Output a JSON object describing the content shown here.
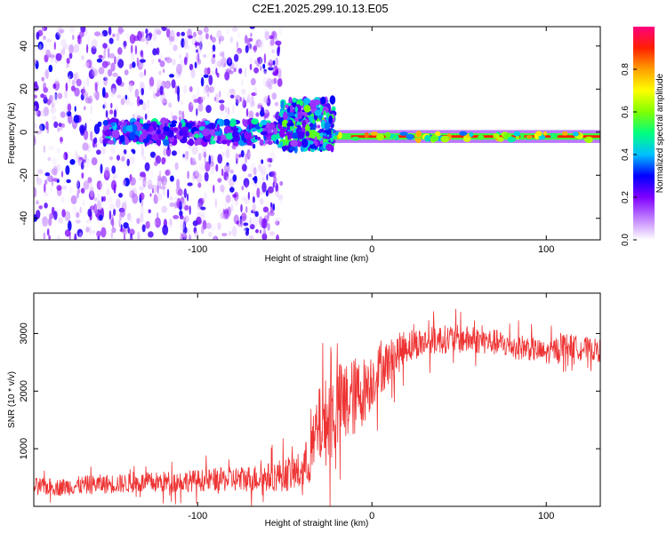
{
  "title": "C2E1.2025.299.10.13.E05",
  "chart_data": [
    {
      "type": "heatmap",
      "xlabel": "Height of straight line (km)",
      "ylabel": "Frequency (Hz)",
      "xlim": [
        -194,
        131
      ],
      "ylim": [
        -50,
        49
      ],
      "xticks": [
        -100,
        0,
        100
      ],
      "xtick_labels": [
        "-100",
        "0",
        "100"
      ],
      "yticks": [
        -40,
        -20,
        0,
        20,
        40
      ],
      "ytick_labels": [
        "-40",
        "-20",
        "0",
        "20",
        "40"
      ],
      "colorbar": {
        "label": "Normalized spectral amplitude",
        "range": [
          0.0,
          1.0
        ],
        "ticks": [
          0.0,
          0.2,
          0.4,
          0.6,
          0.8
        ],
        "tick_labels": [
          "0.0",
          "0.2",
          "0.4",
          "0.6",
          "0.8"
        ],
        "colors": [
          "#ffffff",
          "#c080ff",
          "#8000ff",
          "#0000ff",
          "#00c0ff",
          "#00ff80",
          "#80ff00",
          "#ffff00",
          "#ffa000",
          "#ff2000",
          "#ff0080"
        ]
      },
      "regions": [
        {
          "x_from": -194,
          "x_to": -52,
          "description_amp": 0.2,
          "freq_band": [
            -50,
            49
          ]
        },
        {
          "x_from": -52,
          "x_to": -22,
          "description_amp": 0.4,
          "freq_band": [
            -8,
            15
          ]
        },
        {
          "x_from": -22,
          "x_to": 131,
          "description_amp": 0.9,
          "freq_center": -2
        }
      ]
    },
    {
      "type": "line",
      "xlabel": "Height of straight line (km)",
      "ylabel": "SNR (10 * v/v)",
      "xlim": [
        -194,
        131
      ],
      "ylim": [
        0,
        3700
      ],
      "xticks": [
        -100,
        0,
        100
      ],
      "xtick_labels": [
        "-100",
        "0",
        "100"
      ],
      "yticks": [
        1000,
        2000,
        3000
      ],
      "ytick_labels": [
        "1000",
        "2000",
        "3000"
      ],
      "color": "#ee3333",
      "series": [
        {
          "name": "SNR",
          "x": [
            -194,
            -180,
            -160,
            -140,
            -120,
            -100,
            -80,
            -60,
            -50,
            -40,
            -35,
            -30,
            -25,
            -20,
            -15,
            -10,
            -5,
            0,
            5,
            10,
            20,
            30,
            40,
            50,
            60,
            70,
            80,
            90,
            100,
            110,
            120,
            131
          ],
          "y": [
            350,
            330,
            380,
            400,
            420,
            450,
            470,
            500,
            560,
            600,
            900,
            1400,
            1500,
            1700,
            1800,
            1900,
            2000,
            2200,
            2400,
            2500,
            2800,
            2850,
            2900,
            2900,
            2880,
            2850,
            2780,
            2750,
            2650,
            2800,
            2750,
            2700
          ],
          "spread": [
            150,
            150,
            170,
            170,
            190,
            190,
            220,
            250,
            300,
            350,
            500,
            700,
            800,
            800,
            750,
            700,
            600,
            500,
            450,
            400,
            300,
            250,
            250,
            250,
            230,
            230,
            220,
            220,
            200,
            220,
            200,
            200
          ]
        }
      ]
    }
  ]
}
